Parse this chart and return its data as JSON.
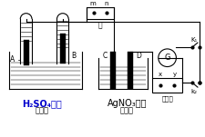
{
  "bg_color": "#ffffff",
  "label_h2so4": "H₂SO₄溶液",
  "label_jia": "（甲）",
  "label_agno3": "AgNO₃溶液",
  "label_yi": "（乙）",
  "label_bing": "丙",
  "label_A": "A",
  "label_B": "B",
  "label_C": "C",
  "label_D": "D",
  "label_m": "m",
  "label_n": "n",
  "label_x": "x",
  "label_y": "y",
  "label_G": "G",
  "label_T": "（丁）",
  "label_K1": "K₁",
  "label_K2": "k₂",
  "line_color": "#000000",
  "h2so4_color": "#0000cc"
}
